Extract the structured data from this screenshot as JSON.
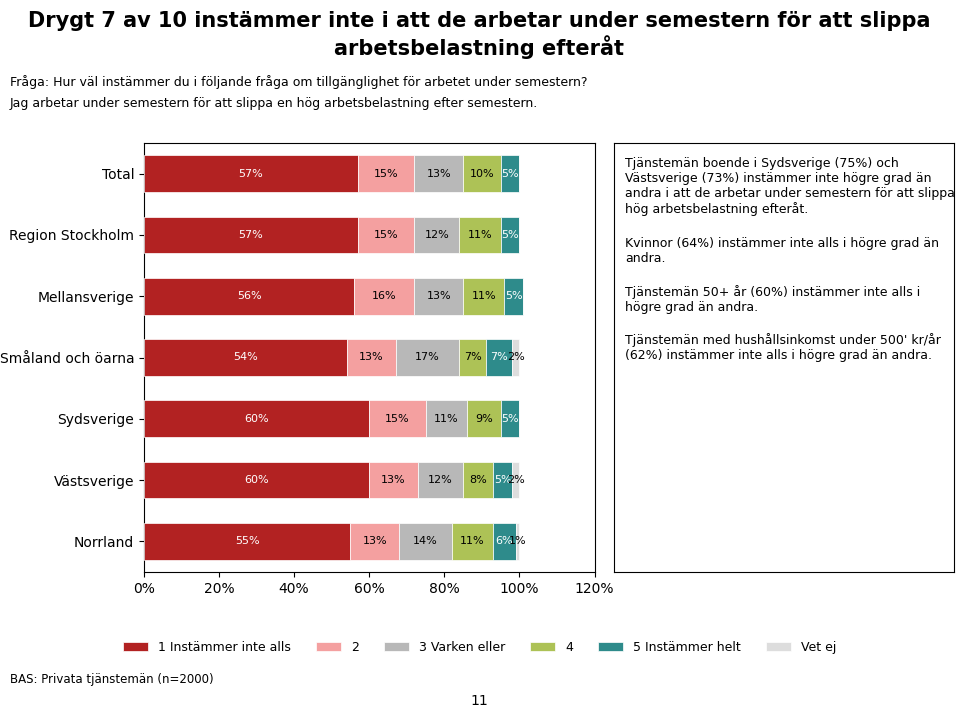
{
  "chart_data": {
    "type": "bar",
    "orientation": "horizontal",
    "stacked": true,
    "data_labels": true,
    "grid": false,
    "legend": "lower center",
    "title": "Drygt 7 av 10 instämmer inte i att de arbetar under semestern för att slippa arbetsbelastning efteråt",
    "subtitle": [
      "Fråga: Hur väl instämmer du i följande fråga om tillgänglighet för arbetet under semestern?",
      "Jag arbetar under semestern för att slippa en hög arbetsbelastning efter semestern."
    ],
    "categories": [
      "Total",
      "Region Stockholm",
      "Mellansverige",
      "Småland och öarna",
      "Sydsverige",
      "Västsverige",
      "Norrland"
    ],
    "series": [
      {
        "name": "1 Instämmer inte alls",
        "color": "#b22222",
        "values": [
          57,
          57,
          56,
          54,
          60,
          60,
          55
        ],
        "value_labels": [
          "57%",
          "57%",
          "56%",
          "54%",
          "60%",
          "60%",
          "55%"
        ]
      },
      {
        "name": "2",
        "color": "#f4a0a0",
        "values": [
          15,
          15,
          16,
          13,
          15,
          13,
          13
        ],
        "value_labels": [
          "15%",
          "15%",
          "16%",
          "13%",
          "15%",
          "13%",
          "13%"
        ]
      },
      {
        "name": "3 Varken eller",
        "color": "#b8b8b8",
        "values": [
          13,
          12,
          13,
          17,
          11,
          12,
          14
        ],
        "value_labels": [
          "13%",
          "12%",
          "13%",
          "17%",
          "11%",
          "12%",
          "14%"
        ]
      },
      {
        "name": "4",
        "color": "#adc256",
        "values": [
          10,
          11,
          11,
          7,
          9,
          8,
          11
        ],
        "value_labels": [
          "10%",
          "11%",
          "11%",
          "7%",
          "9%",
          "8%",
          "11%"
        ]
      },
      {
        "name": "5 Instämmer helt",
        "color": "#2e8b8b",
        "values": [
          5,
          5,
          5,
          7,
          5,
          5,
          6
        ],
        "value_labels": [
          "5%",
          "5%",
          "5%",
          "7%",
          "5%",
          "5%",
          "6%"
        ]
      },
      {
        "name": "Vet ej",
        "color": "#dddddd",
        "values": [
          0,
          0,
          0,
          2,
          0,
          2,
          1
        ],
        "value_labels": [
          null,
          null,
          null,
          "2%",
          null,
          "2%",
          "1%"
        ]
      }
    ],
    "xlim": [
      0,
      120
    ],
    "xticks": [
      {
        "value": 0,
        "label": "0%"
      },
      {
        "value": 20,
        "label": "20%"
      },
      {
        "value": 40,
        "label": "40%"
      },
      {
        "value": 60,
        "label": "60%"
      },
      {
        "value": 80,
        "label": "80%"
      },
      {
        "value": 100,
        "label": "100%"
      },
      {
        "value": 120,
        "label": "120%"
      }
    ],
    "annotations": [
      "Tjänstemän boende i Sydsverige (75%) och Västsverige (73%) instämmer inte högre grad än andra i att de arbetar under semestern för att slippa hög arbetsbelastning efteråt.",
      "Kvinnor (64%) instämmer inte alls i högre grad än andra.",
      "Tjänstemän 50+ år (60%) instämmer inte alls i högre grad än andra.",
      "Tjänstemän med hushållsinkomst under 500' kr/år (62%) instämmer inte alls i högre grad än andra."
    ],
    "source": "BAS: Privata tjänstemän (n=2000)",
    "page_number": "11"
  }
}
